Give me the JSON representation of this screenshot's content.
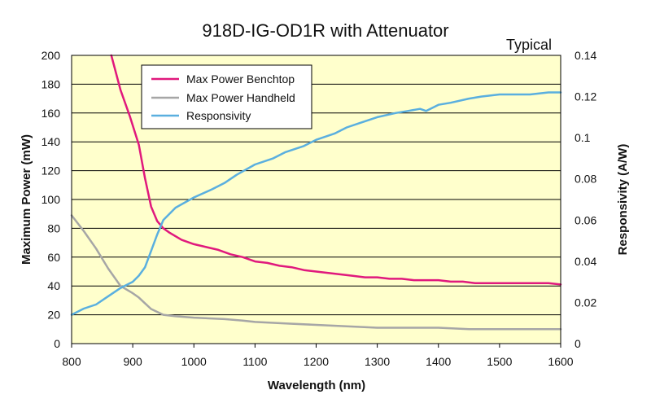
{
  "chart_data": {
    "type": "line",
    "title": "918D-IG-OD1R with Attenuator",
    "note": "Typical",
    "xlabel": "Wavelength (nm)",
    "ylabel_left": "Maximum Power (mW)",
    "ylabel_right": "Responsivity (A/W)",
    "xlim": [
      800,
      1600
    ],
    "ylim_left": [
      0,
      200
    ],
    "ylim_right": [
      0,
      0.14
    ],
    "x_ticks": [
      "800",
      "900",
      "1000",
      "1100",
      "1200",
      "1300",
      "1400",
      "1500",
      "1600"
    ],
    "y_ticks_left": [
      "0",
      "20",
      "40",
      "60",
      "80",
      "100",
      "120",
      "140",
      "160",
      "180",
      "200"
    ],
    "y_ticks_right": [
      "0",
      "0.02",
      "0.04",
      "0.06",
      "0.08",
      "0.1",
      "0.12",
      "0.14"
    ],
    "grid": "horizontal",
    "plot_background": "#ffffcc",
    "legend_position": "top-left",
    "series": [
      {
        "name": "Max Power Benchtop",
        "axis": "left",
        "color": "#e0197d",
        "x": [
          865,
          880,
          895,
          910,
          920,
          930,
          940,
          950,
          960,
          980,
          1000,
          1020,
          1040,
          1060,
          1080,
          1100,
          1120,
          1140,
          1160,
          1180,
          1200,
          1220,
          1240,
          1260,
          1280,
          1300,
          1320,
          1340,
          1360,
          1380,
          1400,
          1420,
          1440,
          1460,
          1480,
          1500,
          1520,
          1540,
          1560,
          1580,
          1600
        ],
        "y": [
          200,
          176,
          158,
          138,
          115,
          95,
          85,
          80,
          77,
          72,
          69,
          67,
          65,
          62,
          60,
          57,
          56,
          54,
          53,
          51,
          50,
          49,
          48,
          47,
          46,
          46,
          45,
          45,
          44,
          44,
          44,
          43,
          43,
          42,
          42,
          42,
          42,
          42,
          42,
          42,
          41
        ]
      },
      {
        "name": "Max Power Handheld",
        "axis": "left",
        "color": "#a6a6a6",
        "x": [
          800,
          820,
          840,
          860,
          880,
          900,
          910,
          920,
          930,
          950,
          970,
          1000,
          1050,
          1080,
          1100,
          1150,
          1200,
          1250,
          1300,
          1350,
          1400,
          1450,
          1500,
          1550,
          1600
        ],
        "y": [
          89,
          78,
          66,
          52,
          40,
          35,
          32,
          28,
          24,
          20,
          19,
          18,
          17,
          16,
          15,
          14,
          13,
          12,
          11,
          11,
          11,
          10,
          10,
          10,
          10
        ]
      },
      {
        "name": "Responsivity",
        "axis": "right",
        "color": "#5aafdf",
        "x": [
          800,
          820,
          840,
          860,
          880,
          900,
          910,
          920,
          930,
          940,
          950,
          970,
          1000,
          1030,
          1050,
          1070,
          1100,
          1130,
          1150,
          1180,
          1200,
          1230,
          1250,
          1270,
          1300,
          1330,
          1350,
          1370,
          1380,
          1400,
          1420,
          1450,
          1470,
          1500,
          1550,
          1580,
          1600
        ],
        "y": [
          0.014,
          0.017,
          0.019,
          0.023,
          0.027,
          0.03,
          0.033,
          0.037,
          0.045,
          0.053,
          0.06,
          0.066,
          0.071,
          0.075,
          0.078,
          0.082,
          0.087,
          0.09,
          0.093,
          0.096,
          0.099,
          0.102,
          0.105,
          0.107,
          0.11,
          0.112,
          0.113,
          0.114,
          0.113,
          0.116,
          0.117,
          0.119,
          0.12,
          0.121,
          0.121,
          0.122,
          0.122
        ]
      }
    ]
  }
}
